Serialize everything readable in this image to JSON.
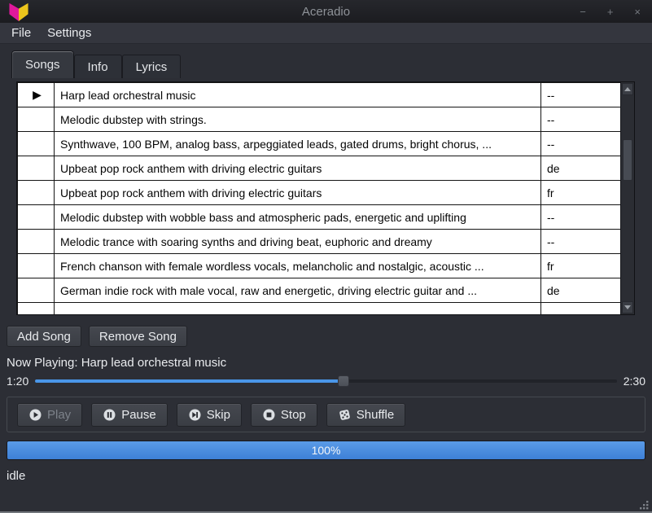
{
  "window": {
    "title": "Aceradio",
    "controls": {
      "minimize": "−",
      "maximize": "+",
      "close": "×"
    }
  },
  "menu": {
    "items": [
      {
        "label": "File"
      },
      {
        "label": "Settings"
      }
    ]
  },
  "tabs": [
    {
      "label": "Songs",
      "active": true
    },
    {
      "label": "Info",
      "active": false
    },
    {
      "label": "Lyrics",
      "active": false
    }
  ],
  "songs": {
    "rows": [
      {
        "indicator": "▶",
        "title": "Harp lead orchestral music",
        "language": "--"
      },
      {
        "indicator": "",
        "title": "Melodic dubstep with strings.",
        "language": "--"
      },
      {
        "indicator": "",
        "title": "Synthwave, 100 BPM, analog bass, arpeggiated leads, gated drums, bright chorus, ...",
        "language": "--"
      },
      {
        "indicator": "",
        "title": "Upbeat pop rock anthem with driving electric guitars",
        "language": "de"
      },
      {
        "indicator": "",
        "title": "Upbeat pop rock anthem with driving electric guitars",
        "language": "fr"
      },
      {
        "indicator": "",
        "title": "Melodic dubstep with wobble bass and atmospheric pads, energetic and uplifting",
        "language": "--"
      },
      {
        "indicator": "",
        "title": "Melodic trance with soaring synths and driving beat, euphoric and dreamy",
        "language": "--"
      },
      {
        "indicator": "",
        "title": "French chanson with female wordless vocals, melancholic and nostalgic, acoustic ...",
        "language": "fr"
      },
      {
        "indicator": "",
        "title": "German indie rock with male vocal, raw and energetic, driving electric guitar and ...",
        "language": "de"
      }
    ]
  },
  "library_buttons": {
    "add": "Add Song",
    "remove": "Remove Song"
  },
  "now_playing": {
    "text": "Now Playing: Harp lead orchestral music"
  },
  "seek": {
    "elapsed": "1:20",
    "total": "2:30",
    "progress_pct": 53
  },
  "transport": {
    "play": "Play",
    "pause": "Pause",
    "skip": "Skip",
    "stop": "Stop",
    "shuffle": "Shuffle",
    "play_disabled": true
  },
  "progress": {
    "label": "100%",
    "pct": 100
  },
  "status": {
    "text": "idle"
  },
  "colors": {
    "accent_blue": "#4a96e8",
    "logo_magenta": "#e0189b",
    "logo_yellow": "#ecc51c",
    "table_bg": "#ffffff",
    "window_bg": "#2c2e35"
  }
}
